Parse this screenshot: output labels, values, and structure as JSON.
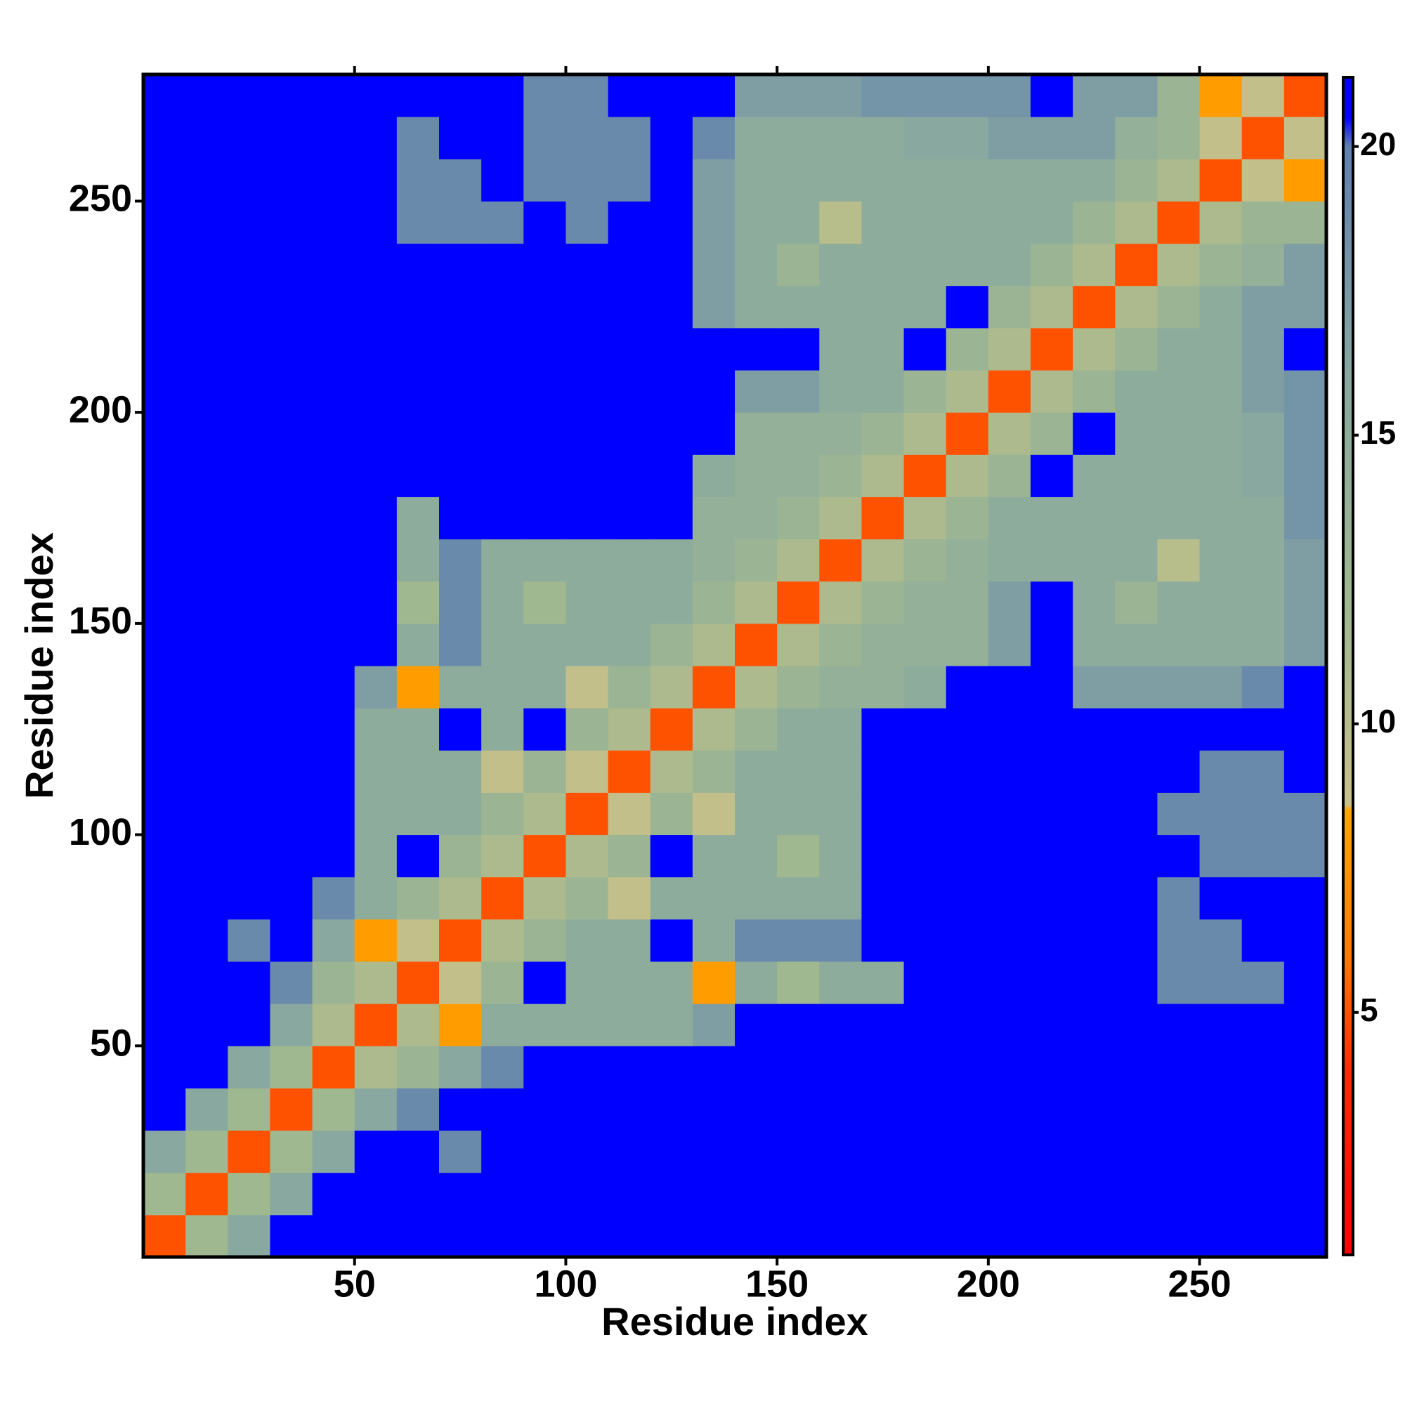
{
  "chart_data": {
    "type": "heatmap",
    "xlabel": "Residue index",
    "ylabel": "Residue index",
    "xbins": [
      0,
      10,
      20,
      30,
      40,
      50,
      60,
      70,
      80,
      90,
      100,
      110,
      120,
      130,
      140,
      150,
      160,
      170,
      180,
      190,
      200,
      210,
      220,
      230,
      240,
      250,
      260,
      270,
      280
    ],
    "ybins": [
      0,
      10,
      20,
      30,
      40,
      50,
      60,
      70,
      80,
      90,
      100,
      110,
      120,
      130,
      140,
      150,
      160,
      170,
      180,
      190,
      200,
      210,
      220,
      230,
      240,
      250,
      260,
      270,
      280
    ],
    "xlim": [
      0,
      280
    ],
    "ylim": [
      0,
      280
    ],
    "xticks": [
      50,
      100,
      150,
      200,
      250
    ],
    "yticks": [
      50,
      100,
      150,
      200,
      250
    ],
    "zlim": [
      0.8,
      21.2
    ],
    "zticks": [
      5,
      10,
      15,
      20
    ],
    "colorscale": [
      [
        0.8,
        "#ff0000"
      ],
      [
        4,
        "#ff2a00"
      ],
      [
        6,
        "#ff7a00"
      ],
      [
        8.5,
        "#ffa500"
      ],
      [
        8.6,
        "#c8c08a"
      ],
      [
        12,
        "#a0b890"
      ],
      [
        16,
        "#88a8a0"
      ],
      [
        20,
        "#6080b0"
      ],
      [
        20.5,
        "#0000ff"
      ],
      [
        21.2,
        "#0000ff"
      ]
    ],
    "z": [
      [
        5,
        12,
        16,
        21,
        21,
        21,
        21,
        21,
        21,
        21,
        21,
        21,
        21,
        21,
        21,
        21,
        21,
        21,
        21,
        21,
        21,
        21,
        21,
        21,
        21,
        21,
        21,
        21
      ],
      [
        12,
        5,
        12,
        16,
        21,
        21,
        21,
        21,
        21,
        21,
        21,
        21,
        21,
        21,
        21,
        21,
        21,
        21,
        21,
        21,
        21,
        21,
        21,
        21,
        21,
        21,
        21,
        21
      ],
      [
        16,
        12,
        5,
        12,
        16,
        21,
        21,
        19,
        21,
        21,
        21,
        21,
        21,
        21,
        21,
        21,
        21,
        21,
        21,
        21,
        21,
        21,
        21,
        21,
        21,
        21,
        21,
        21
      ],
      [
        21,
        16,
        12,
        5,
        12,
        16,
        19,
        21,
        21,
        21,
        21,
        21,
        21,
        21,
        21,
        21,
        21,
        21,
        21,
        21,
        21,
        21,
        21,
        21,
        21,
        21,
        21,
        21
      ],
      [
        21,
        21,
        16,
        12,
        5,
        11,
        13,
        16,
        19,
        21,
        21,
        21,
        21,
        21,
        21,
        21,
        21,
        21,
        21,
        21,
        21,
        21,
        21,
        21,
        21,
        21,
        21,
        21
      ],
      [
        21,
        21,
        21,
        16,
        11,
        5,
        11,
        8,
        15,
        15,
        15,
        15,
        15,
        17,
        21,
        21,
        21,
        21,
        21,
        21,
        21,
        21,
        21,
        21,
        21,
        21,
        21,
        21
      ],
      [
        21,
        21,
        21,
        19,
        13,
        11,
        5,
        9,
        13,
        21,
        15,
        15,
        15,
        8,
        15,
        12,
        15,
        15,
        21,
        21,
        21,
        21,
        21,
        21,
        19,
        19,
        19,
        21
      ],
      [
        21,
        21,
        19,
        21,
        16,
        8,
        9,
        5,
        11,
        13,
        15,
        15,
        21,
        15,
        19,
        19,
        19,
        21,
        21,
        21,
        21,
        21,
        21,
        21,
        19,
        19,
        21,
        21
      ],
      [
        21,
        21,
        21,
        21,
        19,
        15,
        13,
        11,
        5,
        11,
        13,
        9,
        15,
        15,
        15,
        15,
        15,
        21,
        21,
        21,
        21,
        21,
        21,
        21,
        19,
        21,
        21,
        21
      ],
      [
        21,
        21,
        21,
        21,
        21,
        15,
        21,
        13,
        11,
        5,
        11,
        13,
        21,
        15,
        15,
        12,
        15,
        21,
        21,
        21,
        21,
        21,
        21,
        21,
        21,
        19,
        19,
        19
      ],
      [
        21,
        21,
        21,
        21,
        21,
        15,
        15,
        15,
        13,
        11,
        5,
        9,
        13,
        9,
        15,
        15,
        15,
        21,
        21,
        21,
        21,
        21,
        21,
        21,
        19,
        19,
        19,
        19
      ],
      [
        21,
        21,
        21,
        21,
        21,
        15,
        15,
        15,
        9,
        13,
        9,
        5,
        11,
        13,
        15,
        15,
        15,
        21,
        21,
        21,
        21,
        21,
        21,
        21,
        21,
        19,
        19,
        21
      ],
      [
        21,
        21,
        21,
        21,
        21,
        15,
        15,
        21,
        15,
        21,
        13,
        11,
        5,
        11,
        13,
        15,
        15,
        21,
        21,
        21,
        21,
        21,
        21,
        21,
        21,
        21,
        21,
        21
      ],
      [
        21,
        21,
        21,
        21,
        21,
        17,
        8,
        15,
        15,
        15,
        9,
        13,
        11,
        5,
        11,
        13,
        14,
        14,
        15,
        21,
        21,
        21,
        17,
        17,
        17,
        17,
        19,
        21
      ],
      [
        21,
        21,
        21,
        21,
        21,
        21,
        15,
        19,
        15,
        15,
        15,
        15,
        13,
        11,
        5,
        11,
        13,
        14,
        14,
        14,
        17,
        21,
        15,
        15,
        15,
        15,
        15,
        17
      ],
      [
        21,
        21,
        21,
        21,
        21,
        21,
        12,
        19,
        15,
        12,
        15,
        15,
        15,
        13,
        11,
        5,
        11,
        13,
        14,
        14,
        17,
        21,
        15,
        13,
        15,
        15,
        15,
        17
      ],
      [
        21,
        21,
        21,
        21,
        21,
        21,
        15,
        19,
        15,
        15,
        15,
        15,
        15,
        14,
        13,
        11,
        5,
        11,
        13,
        14,
        15,
        15,
        15,
        15,
        10,
        15,
        15,
        17
      ],
      [
        21,
        21,
        21,
        21,
        21,
        21,
        15,
        21,
        21,
        21,
        21,
        21,
        21,
        14,
        14,
        13,
        11,
        5,
        11,
        13,
        15,
        15,
        15,
        15,
        15,
        15,
        15,
        18
      ],
      [
        21,
        21,
        21,
        21,
        21,
        21,
        21,
        21,
        21,
        21,
        21,
        21,
        21,
        15,
        14,
        14,
        13,
        11,
        5,
        11,
        13,
        21,
        15,
        15,
        15,
        15,
        16,
        18
      ],
      [
        21,
        21,
        21,
        21,
        21,
        21,
        21,
        21,
        21,
        21,
        21,
        21,
        21,
        21,
        14,
        14,
        14,
        13,
        11,
        5,
        11,
        13,
        21,
        15,
        15,
        15,
        16,
        18
      ],
      [
        21,
        21,
        21,
        21,
        21,
        21,
        21,
        21,
        21,
        21,
        21,
        21,
        21,
        21,
        17,
        17,
        15,
        15,
        13,
        11,
        5,
        11,
        13,
        15,
        15,
        15,
        17,
        18
      ],
      [
        21,
        21,
        21,
        21,
        21,
        21,
        21,
        21,
        21,
        21,
        21,
        21,
        21,
        21,
        21,
        21,
        15,
        15,
        21,
        13,
        11,
        5,
        11,
        13,
        15,
        15,
        17,
        21
      ],
      [
        21,
        21,
        21,
        21,
        21,
        21,
        21,
        21,
        21,
        21,
        21,
        21,
        21,
        17,
        15,
        15,
        15,
        15,
        15,
        21,
        13,
        11,
        5,
        11,
        13,
        15,
        17,
        17
      ],
      [
        21,
        21,
        21,
        21,
        21,
        21,
        21,
        21,
        21,
        21,
        21,
        21,
        21,
        17,
        15,
        13,
        15,
        15,
        15,
        15,
        15,
        13,
        11,
        5,
        11,
        13,
        14,
        17
      ],
      [
        21,
        21,
        21,
        21,
        21,
        21,
        19,
        19,
        19,
        21,
        19,
        21,
        21,
        17,
        15,
        15,
        10,
        15,
        15,
        15,
        15,
        15,
        13,
        11,
        5,
        11,
        13,
        13
      ],
      [
        21,
        21,
        21,
        21,
        21,
        21,
        19,
        19,
        21,
        19,
        19,
        19,
        21,
        17,
        15,
        15,
        15,
        15,
        15,
        15,
        15,
        15,
        15,
        13,
        11,
        5,
        9,
        8
      ],
      [
        21,
        21,
        21,
        21,
        21,
        21,
        19,
        21,
        21,
        19,
        19,
        19,
        21,
        19,
        15,
        15,
        15,
        15,
        16,
        16,
        17,
        17,
        17,
        14,
        13,
        9,
        5,
        9
      ],
      [
        21,
        21,
        21,
        21,
        21,
        21,
        21,
        21,
        21,
        19,
        19,
        21,
        21,
        21,
        17,
        17,
        17,
        18,
        18,
        18,
        18,
        21,
        17,
        17,
        13,
        8,
        9,
        5
      ]
    ]
  }
}
